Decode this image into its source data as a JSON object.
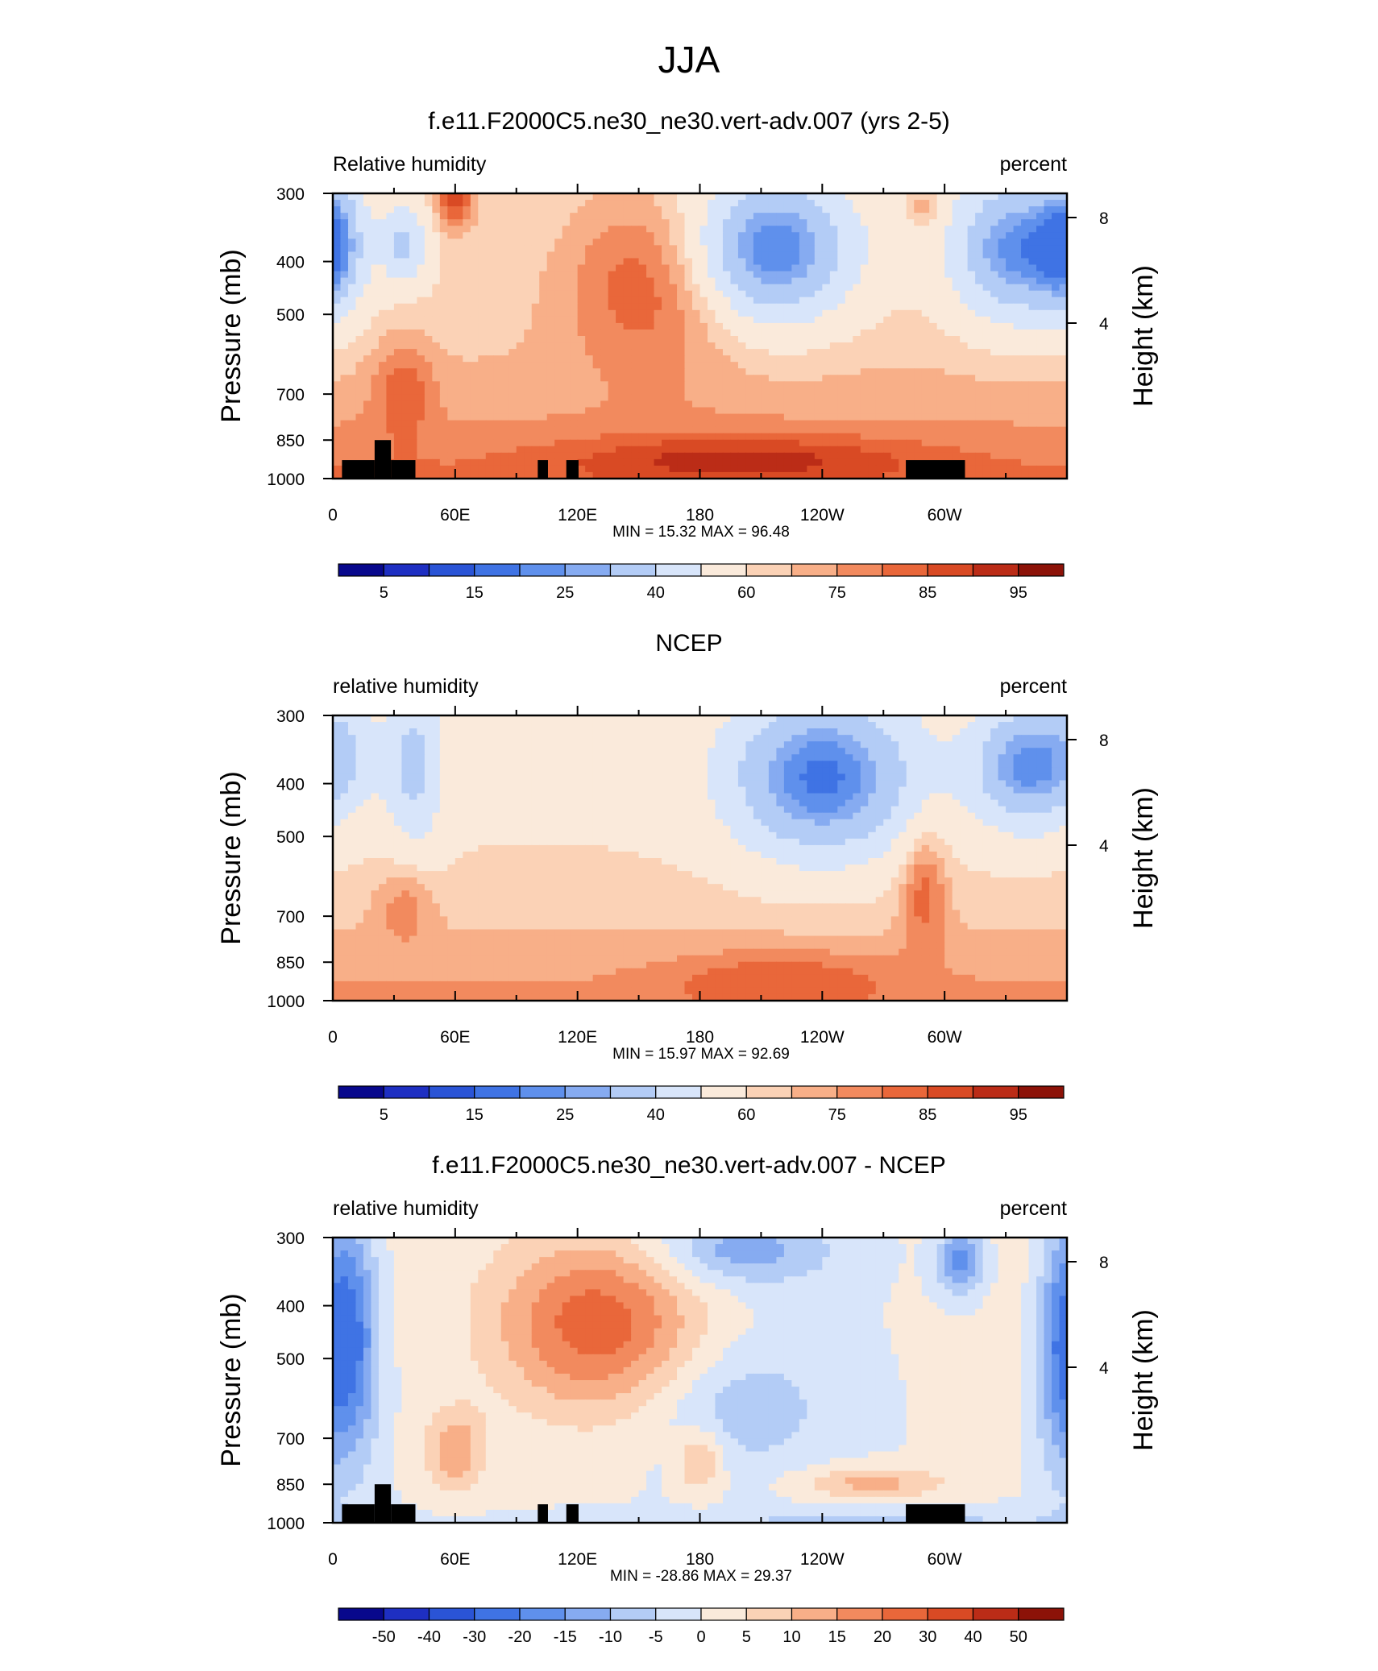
{
  "figure_title": "JJA",
  "chart_data": [
    {
      "type": "heatmap",
      "title": "f.e11.F2000C5.ne30_ne30.vert-adv.007 (yrs 2-5)",
      "left_label": "Relative humidity",
      "right_label": "percent",
      "ylabel": "Pressure (mb)",
      "ylabel_right": "Height (km)",
      "x_tick_labels": [
        "0",
        "60E",
        "120E",
        "180",
        "120W",
        "60W"
      ],
      "x_range_deg": [
        0,
        360
      ],
      "y_tick_labels": [
        "300",
        "400",
        "500",
        "700",
        "850",
        "1000"
      ],
      "y_right_tick_labels": [
        "8",
        "4"
      ],
      "stats": "MIN =  15.32  MAX =  96.48",
      "min": 15.32,
      "max": 96.48,
      "colorbar_labels": [
        "5",
        "15",
        "25",
        "40",
        "60",
        "75",
        "85",
        "95"
      ],
      "colorbar_levels": [
        5,
        10,
        15,
        20,
        25,
        30,
        40,
        50,
        60,
        65,
        70,
        75,
        80,
        85,
        90,
        95
      ],
      "has_terrain": true
    },
    {
      "type": "heatmap",
      "title": "NCEP",
      "left_label": "relative humidity",
      "right_label": "percent",
      "ylabel": "Pressure (mb)",
      "ylabel_right": "Height (km)",
      "x_tick_labels": [
        "0",
        "60E",
        "120E",
        "180",
        "120W",
        "60W"
      ],
      "x_range_deg": [
        0,
        360
      ],
      "y_tick_labels": [
        "300",
        "400",
        "500",
        "700",
        "850",
        "1000"
      ],
      "y_right_tick_labels": [
        "8",
        "4"
      ],
      "stats": "MIN =  15.97  MAX =  92.69",
      "min": 15.97,
      "max": 92.69,
      "colorbar_labels": [
        "5",
        "15",
        "25",
        "40",
        "60",
        "75",
        "85",
        "95"
      ],
      "colorbar_levels": [
        5,
        10,
        15,
        20,
        25,
        30,
        40,
        50,
        60,
        65,
        70,
        75,
        80,
        85,
        90,
        95
      ],
      "has_terrain": false
    },
    {
      "type": "heatmap",
      "title": "f.e11.F2000C5.ne30_ne30.vert-adv.007 - NCEP",
      "left_label": "relative humidity",
      "right_label": "percent",
      "ylabel": "Pressure (mb)",
      "ylabel_right": "Height (km)",
      "x_tick_labels": [
        "0",
        "60E",
        "120E",
        "180",
        "120W",
        "60W"
      ],
      "x_range_deg": [
        0,
        360
      ],
      "y_tick_labels": [
        "300",
        "400",
        "500",
        "700",
        "850",
        "1000"
      ],
      "y_right_tick_labels": [
        "8",
        "4"
      ],
      "stats": "MIN = -28.86  MAX =  29.37",
      "min": -28.86,
      "max": 29.37,
      "colorbar_labels": [
        "-50",
        "-40",
        "-30",
        "-20",
        "-15",
        "-10",
        "-5",
        "0",
        "5",
        "10",
        "15",
        "20",
        "30",
        "40",
        "50"
      ],
      "colorbar_levels": [
        -50,
        -40,
        -30,
        -20,
        -15,
        -10,
        -5,
        0,
        5,
        10,
        15,
        20,
        30,
        40,
        50
      ],
      "has_terrain": true
    }
  ],
  "colormap": [
    "#08088c",
    "#1e2fc2",
    "#2a54d6",
    "#3f73e4",
    "#5f90ec",
    "#86abf1",
    "#b3ccf6",
    "#d8e5fa",
    "#faeadb",
    "#fbd2b6",
    "#f8af88",
    "#f28a5e",
    "#e9673a",
    "#d94a24",
    "#bb2c17",
    "#8c1208"
  ]
}
